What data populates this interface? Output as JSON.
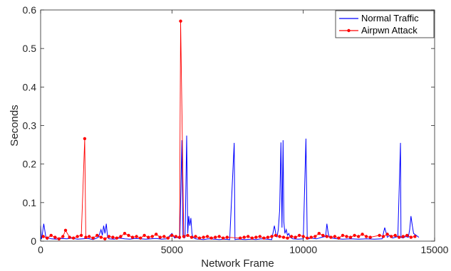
{
  "chart_data": {
    "type": "line",
    "xlabel": "Network Frame",
    "ylabel": "Seconds",
    "xlim": [
      0,
      15000
    ],
    "ylim": [
      0,
      0.6
    ],
    "xticks": [
      0,
      5000,
      10000,
      15000
    ],
    "yticks": [
      0,
      0.1,
      0.2,
      0.3,
      0.4,
      0.5,
      0.6
    ],
    "xtick_labels": [
      "0",
      "5000",
      "10000",
      "15000"
    ],
    "ytick_labels": [
      "0",
      "0.1",
      "0.2",
      "0.3",
      "0.4",
      "0.5",
      "0.6"
    ],
    "grid": false,
    "legend_position": "top-right",
    "series": [
      {
        "name": "Normal Traffic",
        "color": "#0000ff",
        "style": "line",
        "x": [
          0,
          30,
          60,
          120,
          200,
          250,
          300,
          420,
          600,
          800,
          1000,
          1200,
          1400,
          1600,
          1800,
          2000,
          2200,
          2300,
          2350,
          2400,
          2450,
          2500,
          2550,
          2600,
          2800,
          3000,
          3200,
          3400,
          3600,
          3800,
          4000,
          4200,
          4400,
          4600,
          4800,
          5000,
          5100,
          5200,
          5300,
          5380,
          5420,
          5460,
          5500,
          5560,
          5600,
          5640,
          5680,
          5720,
          5760,
          5800,
          5900,
          6000,
          6200,
          6400,
          6600,
          6800,
          7000,
          7200,
          7370,
          7400,
          7500,
          7800,
          8000,
          8200,
          8400,
          8600,
          8800,
          8900,
          8950,
          9000,
          9050,
          9100,
          9150,
          9190,
          9230,
          9260,
          9300,
          9350,
          9400,
          9450,
          9500,
          9600,
          9800,
          10000,
          10100,
          10150,
          10200,
          10300,
          10500,
          10700,
          10850,
          10900,
          10950,
          11000,
          11100,
          11300,
          11500,
          11800,
          12100,
          12400,
          12700,
          13000,
          13100,
          13200,
          13300,
          13400,
          13500,
          13600,
          13700,
          13720,
          13800,
          13900,
          14000,
          14050,
          14100,
          14150,
          14200,
          14300,
          14400
        ],
        "y": [
          0.04,
          0.005,
          0.015,
          0.045,
          0.01,
          0.004,
          0.008,
          0.006,
          0.005,
          0.007,
          0.006,
          0.008,
          0.005,
          0.006,
          0.007,
          0.004,
          0.01,
          0.03,
          0.015,
          0.04,
          0.02,
          0.045,
          0.01,
          0.006,
          0.005,
          0.008,
          0.006,
          0.005,
          0.007,
          0.006,
          0.005,
          0.006,
          0.007,
          0.005,
          0.006,
          0.02,
          0.008,
          0.01,
          0.006,
          0.262,
          0.012,
          0.008,
          0.01,
          0.274,
          0.02,
          0.065,
          0.04,
          0.06,
          0.02,
          0.01,
          0.006,
          0.005,
          0.004,
          0.006,
          0.005,
          0.004,
          0.005,
          0.004,
          0.255,
          0.004,
          0.005,
          0.004,
          0.005,
          0.004,
          0.006,
          0.005,
          0.004,
          0.04,
          0.02,
          0.01,
          0.03,
          0.08,
          0.256,
          0.035,
          0.262,
          0.05,
          0.02,
          0.03,
          0.015,
          0.02,
          0.01,
          0.006,
          0.005,
          0.006,
          0.266,
          0.01,
          0.006,
          0.008,
          0.006,
          0.01,
          0.012,
          0.045,
          0.02,
          0.01,
          0.008,
          0.006,
          0.005,
          0.006,
          0.005,
          0.006,
          0.005,
          0.006,
          0.035,
          0.01,
          0.015,
          0.008,
          0.01,
          0.012,
          0.255,
          0.01,
          0.008,
          0.012,
          0.01,
          0.03,
          0.065,
          0.04,
          0.02,
          0.015,
          0.01
        ]
      },
      {
        "name": "Airpwn Attack",
        "color": "#ff0000",
        "style": "line-marker",
        "x": [
          100,
          250,
          400,
          550,
          700,
          850,
          950,
          1100,
          1250,
          1400,
          1550,
          1680,
          1720,
          1850,
          2000,
          2150,
          2300,
          2450,
          2600,
          2750,
          2900,
          3050,
          3200,
          3350,
          3500,
          3650,
          3800,
          3950,
          4100,
          4250,
          4400,
          4550,
          4700,
          4850,
          5000,
          5150,
          5290,
          5330,
          5450,
          5600,
          5750,
          5900,
          6050,
          6200,
          6350,
          6500,
          6650,
          6800,
          6950,
          7100,
          7600,
          7750,
          7900,
          8050,
          8200,
          8350,
          8500,
          8650,
          8800,
          8950,
          9100,
          9250,
          9400,
          9550,
          9700,
          9850,
          10000,
          10150,
          10300,
          10450,
          10600,
          10750,
          10900,
          11050,
          11200,
          11350,
          11500,
          11650,
          11800,
          11950,
          12100,
          12250,
          12400,
          12550,
          12900,
          13050,
          13200,
          13350,
          13500,
          13650,
          13800,
          13950,
          14100,
          14250
        ],
        "y": [
          0.012,
          0.008,
          0.015,
          0.01,
          0.006,
          0.012,
          0.028,
          0.01,
          0.008,
          0.012,
          0.015,
          0.266,
          0.01,
          0.012,
          0.008,
          0.015,
          0.01,
          0.006,
          0.012,
          0.01,
          0.008,
          0.012,
          0.02,
          0.015,
          0.01,
          0.012,
          0.008,
          0.015,
          0.01,
          0.012,
          0.018,
          0.01,
          0.012,
          0.008,
          0.015,
          0.012,
          0.01,
          0.571,
          0.012,
          0.015,
          0.01,
          0.012,
          0.008,
          0.01,
          0.012,
          0.008,
          0.01,
          0.012,
          0.008,
          0.01,
          0.008,
          0.01,
          0.012,
          0.008,
          0.01,
          0.012,
          0.008,
          0.01,
          0.012,
          0.015,
          0.012,
          0.01,
          0.008,
          0.012,
          0.01,
          0.015,
          0.012,
          0.008,
          0.01,
          0.012,
          0.02,
          0.015,
          0.012,
          0.01,
          0.012,
          0.008,
          0.015,
          0.012,
          0.01,
          0.015,
          0.012,
          0.018,
          0.012,
          0.01,
          0.015,
          0.012,
          0.018,
          0.012,
          0.015,
          0.01,
          0.012,
          0.015,
          0.01,
          0.012
        ]
      }
    ]
  }
}
